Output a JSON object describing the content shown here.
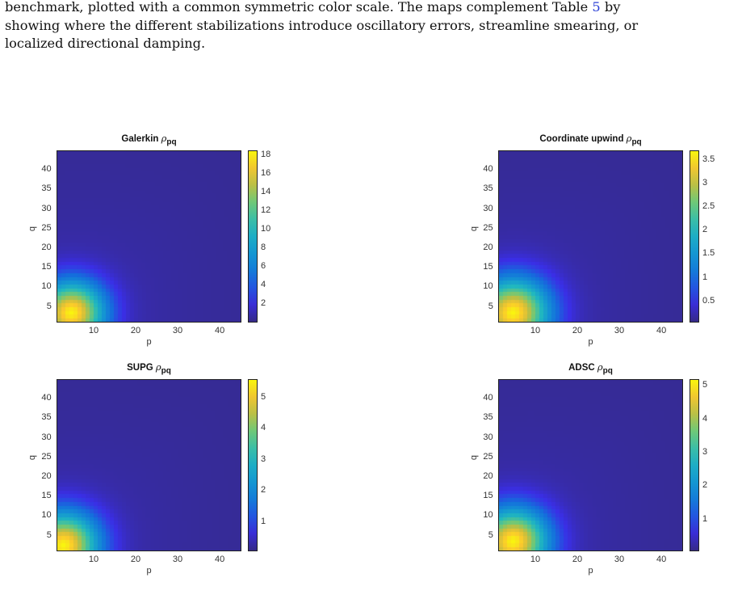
{
  "caption": {
    "line1_pre": "benchmark, plotted with a common symmetric color scale. The maps complement Table ",
    "line1_ref": "5",
    "line1_post": " by",
    "line2": "showing where the different stabilizations introduce oscillatory errors, streamline smearing, or",
    "line3": "localized directional damping."
  },
  "colors": {
    "low": "#3a2ee6",
    "mid": "#21b6cc",
    "high": "#f7e623",
    "peak": "#f9f20e"
  },
  "chart_data": [
    {
      "type": "heatmap",
      "title": "Galerkin ",
      "title_symbol": "ρ",
      "title_sub": "pq",
      "xlabel": "p",
      "ylabel": "q",
      "xticks": [
        "10",
        "20",
        "30",
        "40"
      ],
      "yticks": [
        "5",
        "10",
        "15",
        "20",
        "25",
        "30",
        "35",
        "40"
      ],
      "xlim": [
        1,
        45
      ],
      "ylim": [
        1,
        45
      ],
      "clim": [
        0,
        18.5
      ],
      "cticks": [
        "2",
        "4",
        "6",
        "8",
        "10",
        "12",
        "14",
        "16",
        "18"
      ],
      "peak": {
        "p": 4,
        "q": 3,
        "value": 18.5
      },
      "decay": 0.09
    },
    {
      "type": "heatmap",
      "title": "Coordinate upwind ",
      "title_symbol": "ρ",
      "title_sub": "pq",
      "xlabel": "p",
      "ylabel": "q",
      "xticks": [
        "10",
        "20",
        "30",
        "40"
      ],
      "yticks": [
        "5",
        "10",
        "15",
        "20",
        "25",
        "30",
        "35",
        "40"
      ],
      "xlim": [
        1,
        45
      ],
      "ylim": [
        1,
        45
      ],
      "clim": [
        0.05,
        3.7
      ],
      "cticks": [
        "0.5",
        "1",
        "1.5",
        "2",
        "2.5",
        "3",
        "3.5"
      ],
      "peak": {
        "p": 4,
        "q": 3,
        "value": 3.7
      },
      "decay": 0.075
    },
    {
      "type": "heatmap",
      "title": "SUPG ",
      "title_symbol": "ρ",
      "title_sub": "pq",
      "xlabel": "p",
      "ylabel": "q",
      "xticks": [
        "10",
        "20",
        "30",
        "40"
      ],
      "yticks": [
        "5",
        "10",
        "15",
        "20",
        "25",
        "30",
        "35",
        "40"
      ],
      "xlim": [
        1,
        45
      ],
      "ylim": [
        1,
        45
      ],
      "clim": [
        0.05,
        5.6
      ],
      "cticks": [
        "1",
        "2",
        "3",
        "4",
        "5"
      ],
      "peak": {
        "p": 2,
        "q": 2,
        "value": 5.6
      },
      "decay": 0.08
    },
    {
      "type": "heatmap",
      "title": "ADSC ",
      "title_symbol": "ρ",
      "title_sub": "pq",
      "xlabel": "p",
      "ylabel": "q",
      "xticks": [
        "10",
        "20",
        "30",
        "40"
      ],
      "yticks": [
        "5",
        "10",
        "15",
        "20",
        "25",
        "30",
        "35",
        "40"
      ],
      "xlim": [
        1,
        45
      ],
      "ylim": [
        1,
        45
      ],
      "clim": [
        0.05,
        5.2
      ],
      "cticks": [
        "1",
        "2",
        "3",
        "4",
        "5"
      ],
      "peak": {
        "p": 4,
        "q": 3,
        "value": 5.2
      },
      "decay": 0.08
    }
  ]
}
